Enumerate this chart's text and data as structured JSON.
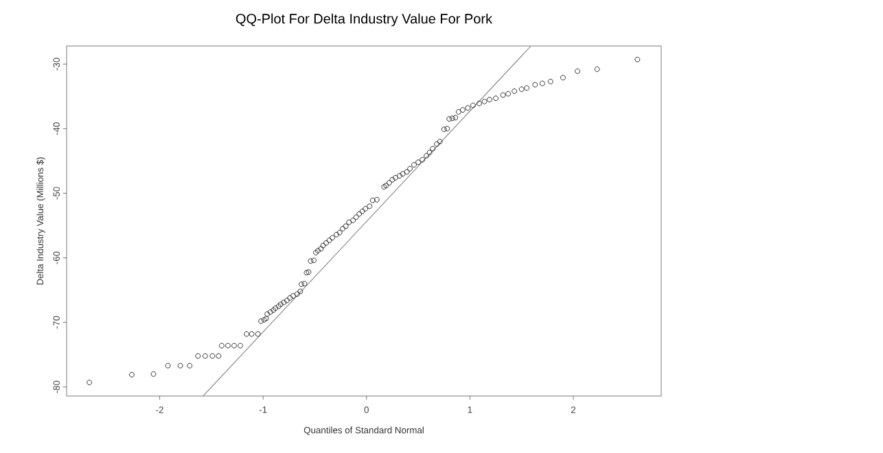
{
  "chart_data": {
    "type": "scatter",
    "title": "QQ-Plot For Delta Industry Value For Pork",
    "xlabel": "Quantiles of Standard Normal",
    "ylabel": "Delta Industry Value (Millions $)",
    "xlim": [
      -2.9,
      2.85
    ],
    "ylim": [
      -81.4,
      -27.2
    ],
    "xticks": [
      -2,
      -1,
      0,
      1,
      2
    ],
    "yticks": [
      -80,
      -70,
      -60,
      -50,
      -40,
      -30
    ],
    "grid": false,
    "marker": "circle",
    "series": [
      {
        "color": "#222222",
        "x": [
          -2.68,
          -2.27,
          -2.06,
          -1.92,
          -1.8,
          -1.71,
          -1.63,
          -1.56,
          -1.49,
          -1.43,
          -1.4,
          -1.34,
          -1.28,
          -1.22,
          -1.16,
          -1.11,
          -1.05,
          -1.02,
          -0.99,
          -0.97,
          -0.96,
          -0.93,
          -0.9,
          -0.88,
          -0.85,
          -0.83,
          -0.8,
          -0.77,
          -0.74,
          -0.71,
          -0.67,
          -0.64,
          -0.63,
          -0.6,
          -0.58,
          -0.56,
          -0.54,
          -0.51,
          -0.49,
          -0.47,
          -0.44,
          -0.42,
          -0.39,
          -0.36,
          -0.33,
          -0.29,
          -0.26,
          -0.23,
          -0.2,
          -0.17,
          -0.13,
          -0.1,
          -0.07,
          -0.04,
          -0.01,
          0.03,
          0.06,
          0.1,
          0.17,
          0.19,
          0.22,
          0.25,
          0.28,
          0.32,
          0.35,
          0.39,
          0.42,
          0.46,
          0.5,
          0.54,
          0.58,
          0.61,
          0.64,
          0.68,
          0.71,
          0.75,
          0.78,
          0.8,
          0.83,
          0.86,
          0.89,
          0.93,
          0.98,
          1.03,
          1.09,
          1.14,
          1.19,
          1.25,
          1.32,
          1.37,
          1.43,
          1.5,
          1.55,
          1.63,
          1.7,
          1.78,
          1.9,
          2.04,
          2.23,
          2.62
        ],
        "values": [
          -79.3,
          -78.1,
          -78.0,
          -76.7,
          -76.7,
          -76.7,
          -75.2,
          -75.2,
          -75.2,
          -75.2,
          -73.6,
          -73.6,
          -73.6,
          -73.6,
          -71.8,
          -71.8,
          -71.8,
          -69.8,
          -69.6,
          -69.4,
          -68.7,
          -68.4,
          -68.1,
          -67.8,
          -67.5,
          -67.2,
          -66.9,
          -66.6,
          -66.2,
          -65.9,
          -65.6,
          -65.2,
          -64.1,
          -64.0,
          -62.3,
          -62.2,
          -60.5,
          -60.4,
          -59.2,
          -58.9,
          -58.6,
          -58.1,
          -57.7,
          -57.3,
          -56.9,
          -56.4,
          -56.1,
          -55.5,
          -55.1,
          -54.5,
          -54.2,
          -53.7,
          -53.2,
          -52.8,
          -52.4,
          -52.0,
          -51.1,
          -51.0,
          -49.0,
          -48.8,
          -48.4,
          -47.9,
          -47.6,
          -47.3,
          -47.0,
          -46.7,
          -46.2,
          -45.6,
          -45.2,
          -44.8,
          -44.2,
          -43.7,
          -43.1,
          -42.4,
          -42.0,
          -40.1,
          -40.0,
          -38.5,
          -38.4,
          -38.3,
          -37.4,
          -37.1,
          -36.8,
          -36.4,
          -36.1,
          -35.8,
          -35.5,
          -35.3,
          -34.8,
          -34.6,
          -34.2,
          -33.9,
          -33.7,
          -33.2,
          -33.0,
          -32.7,
          -32.1,
          -31.1,
          -30.8,
          -29.3
        ]
      },
      {
        "type": "line",
        "color": "#808080",
        "line_style": "solid",
        "marker": "none",
        "x": [
          -1.58,
          1.59
        ],
        "values": [
          -81.4,
          -27.2
        ]
      }
    ]
  }
}
